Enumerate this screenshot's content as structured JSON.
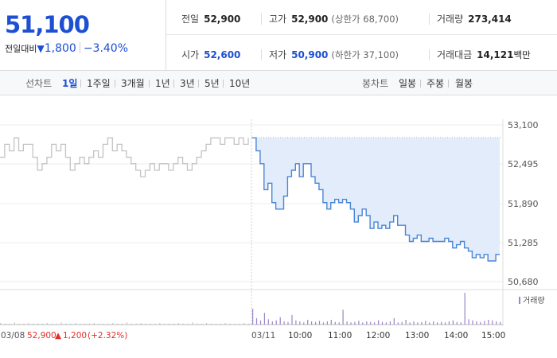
{
  "summary": {
    "price": "51,100",
    "change_label": "전일대비",
    "change_arrow": "▼",
    "change_value": "1,800",
    "change_pct": "−3.40%"
  },
  "stats": {
    "prev_label": "전일",
    "prev_value": "52,900",
    "high_label": "고가",
    "high_value": "52,900",
    "high_sub": "(상한가 68,700)",
    "volume_label": "거래량",
    "volume_value": "273,414",
    "open_label": "시가",
    "open_value": "52,600",
    "low_label": "저가",
    "low_value": "50,900",
    "low_sub": "(하한가 37,100)",
    "amount_label": "거래대금",
    "amount_value": "14,121",
    "amount_unit": "백만"
  },
  "tabs": {
    "line_title": "선차트",
    "line_items": [
      "1일",
      "1주일",
      "3개월",
      "1년",
      "3년",
      "5년",
      "10년"
    ],
    "line_active": 0,
    "candle_title": "봉차트",
    "candle_items": [
      "일봉",
      "주봉",
      "월봉"
    ]
  },
  "colors": {
    "accent_blue": "#1d4fd3",
    "line_blue": "#4a86d8",
    "fill_blue": "#e2ecfb",
    "prev_gray": "#c3c3c3",
    "volume_purple": "#9a85c8",
    "up_red": "#e0302a"
  },
  "chart_data": {
    "type": "line",
    "ylim": [
      50680,
      53100
    ],
    "y_ticks": [
      "53,100",
      "52,495",
      "51,890",
      "51,285",
      "50,680"
    ],
    "y_tick_values": [
      53100,
      52495,
      51890,
      51285,
      50680
    ],
    "reference_value": 52900,
    "prev_day": {
      "label_date": "03/08",
      "label_close": "52,900",
      "label_arrow": "▲",
      "label_change": "1,200",
      "label_pct": "(+2.32%)",
      "values": [
        52600,
        52800,
        52700,
        52900,
        52700,
        52800,
        52800,
        52600,
        52400,
        52500,
        52600,
        52800,
        52700,
        52800,
        52600,
        52400,
        52500,
        52600,
        52500,
        52600,
        52700,
        52600,
        52800,
        52900,
        52700,
        52800,
        52700,
        52600,
        52500,
        52400,
        52300,
        52400,
        52500,
        52400,
        52500,
        52500,
        52400,
        52500,
        52600,
        52500,
        52400,
        52500,
        52600,
        52700,
        52800,
        52900,
        52900,
        52800,
        52900,
        52900,
        52800,
        52900,
        52800,
        52900
      ]
    },
    "today": {
      "label_date": "03/11",
      "x_labels": [
        "10:00",
        "11:00",
        "12:00",
        "13:00",
        "14:00",
        "15:00"
      ],
      "values": [
        52900,
        52700,
        52500,
        52100,
        52200,
        51900,
        51800,
        51800,
        52000,
        52300,
        52400,
        52500,
        52300,
        52500,
        52500,
        52300,
        52200,
        52100,
        51900,
        51800,
        51900,
        51950,
        51900,
        51950,
        51900,
        51800,
        51600,
        51700,
        51800,
        51700,
        51500,
        51600,
        51500,
        51550,
        51500,
        51600,
        51700,
        51550,
        51550,
        51400,
        51300,
        51350,
        51400,
        51300,
        51300,
        51350,
        51300,
        51300,
        51300,
        51350,
        51300,
        51200,
        51250,
        51300,
        51200,
        51150,
        51050,
        51100,
        51050,
        51100,
        51000,
        51000,
        51100,
        51100
      ]
    },
    "volume_label": "거래량",
    "volume": {
      "prev_day": [
        3,
        2,
        2,
        4,
        2,
        2,
        3,
        2,
        2,
        2,
        3,
        2,
        2,
        4,
        2,
        2,
        3,
        2,
        2,
        2,
        3,
        2,
        2,
        2,
        3,
        2,
        2,
        4,
        2,
        2,
        3,
        2,
        2,
        2,
        3,
        2,
        2,
        2,
        3,
        2,
        2,
        4,
        2,
        2,
        3,
        2,
        2,
        2,
        3,
        2,
        2,
        2,
        3,
        2
      ],
      "today": [
        30,
        12,
        8,
        22,
        10,
        6,
        8,
        14,
        6,
        5,
        18,
        8,
        6,
        4,
        9,
        6,
        5,
        7,
        4,
        6,
        9,
        5,
        4,
        28,
        6,
        4,
        5,
        7,
        4,
        6,
        5,
        4,
        8,
        5,
        4,
        6,
        12,
        4,
        5,
        9,
        4,
        6,
        4,
        5,
        7,
        4,
        6,
        4,
        5,
        4,
        6,
        8,
        5,
        4,
        60,
        10,
        8,
        6,
        5,
        7,
        9,
        8,
        6,
        5
      ]
    }
  }
}
